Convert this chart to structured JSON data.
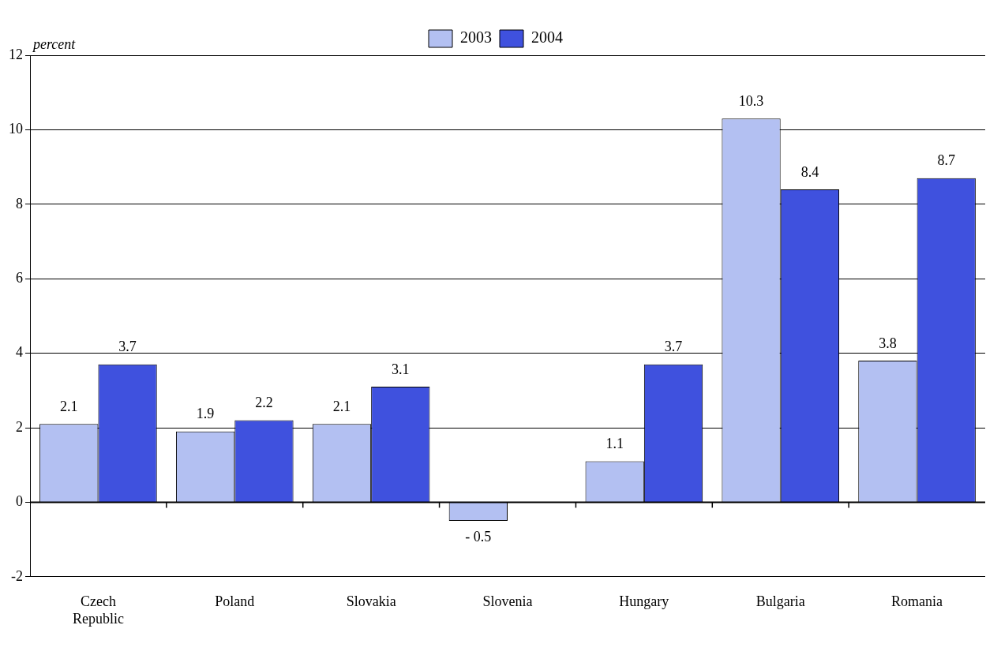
{
  "chart_data": {
    "type": "bar",
    "ylabel": "percent",
    "categories": [
      "Czech Republic",
      "Poland",
      "Slovakia",
      "Slovenia",
      "Hungary",
      "Bulgaria",
      "Romania"
    ],
    "series": [
      {
        "name": "2003",
        "color": "#b3c0f2",
        "values": [
          2.1,
          1.9,
          2.1,
          -0.5,
          1.1,
          10.3,
          3.8
        ],
        "value_labels": [
          "2.1",
          "1.9",
          "2.1",
          "- 0.5",
          "1.1",
          "10.3",
          "3.8"
        ]
      },
      {
        "name": "2004",
        "color": "#3f51de",
        "values": [
          3.7,
          2.2,
          3.1,
          null,
          3.7,
          8.4,
          8.7
        ],
        "value_labels": [
          "3.7",
          "2.2",
          "3.1",
          null,
          "3.7",
          "8.4",
          "8.7"
        ]
      }
    ],
    "ylim": [
      -2,
      12
    ],
    "yticks": [
      -2,
      0,
      2,
      4,
      6,
      8,
      10,
      12
    ],
    "grid": "y",
    "legend": "top"
  }
}
